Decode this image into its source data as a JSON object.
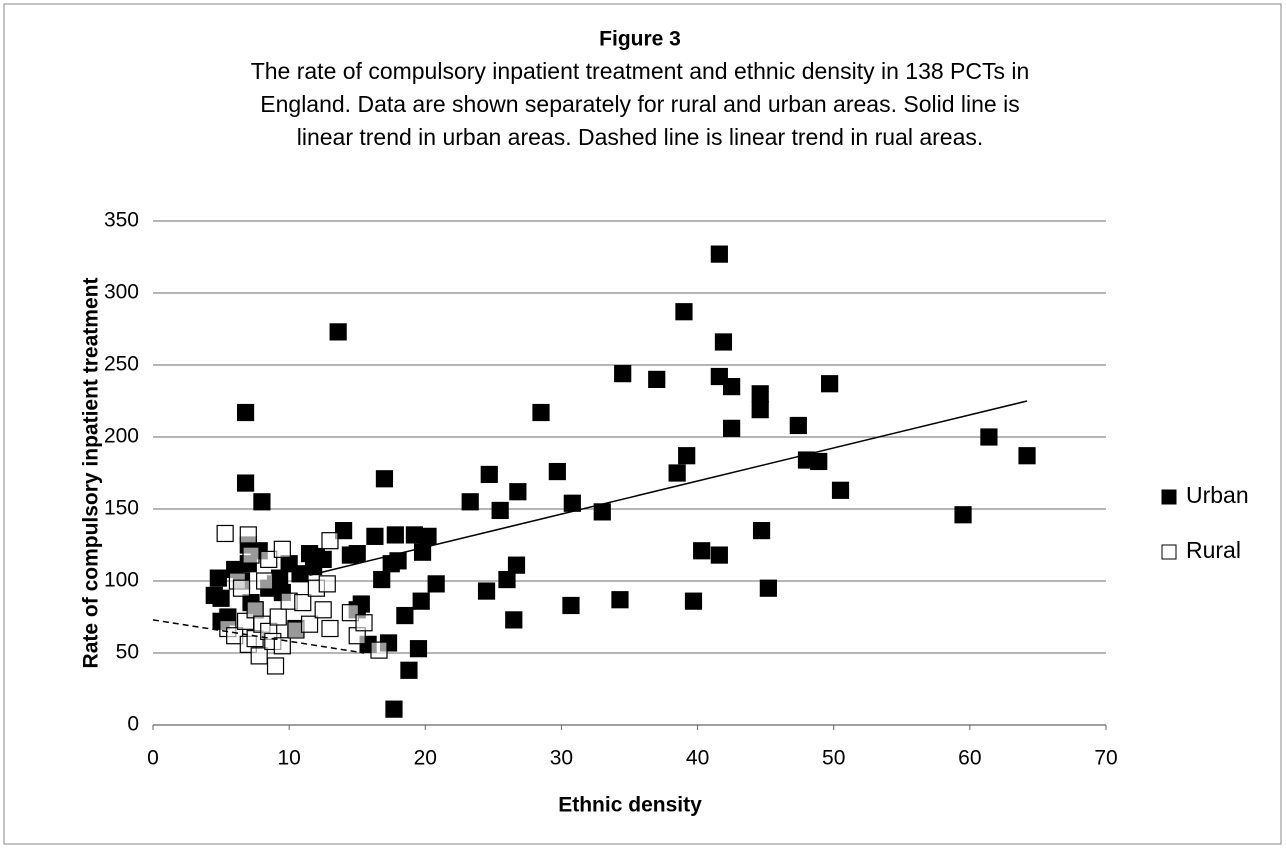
{
  "chart_data": {
    "type": "scatter",
    "title": "Figure 3",
    "subtitle": [
      "The rate of compulsory inpatient treatment and ethnic density in 138 PCTs in",
      "England. Data are shown separately for rural and urban areas. Solid line is",
      "linear trend in urban areas. Dashed line is linear trend in rual areas."
    ],
    "x_label": "Ethnic density",
    "y_label": "Rate of compulsory inpatient treatment",
    "xlim": [
      0,
      70
    ],
    "xticks": [
      0,
      10,
      20,
      30,
      40,
      50,
      60,
      70
    ],
    "ylim": [
      0,
      350
    ],
    "yticks": [
      0,
      50,
      100,
      150,
      200,
      250,
      300,
      350
    ],
    "grid": true,
    "legend": "right",
    "series": [
      {
        "name": "Urban",
        "color": "#000000",
        "filled": true,
        "x": [
          4.5,
          4.8,
          5,
          5,
          5.5,
          6,
          6.5,
          6.8,
          6.8,
          7,
          7,
          7.2,
          7.5,
          7.8,
          8,
          8.5,
          9,
          9.3,
          9.5,
          10,
          10.5,
          10.8,
          11.5,
          11.8,
          12,
          12.5,
          13.6,
          14,
          14.5,
          15,
          15,
          15.3,
          15.8,
          16.3,
          16.8,
          17,
          17.3,
          17.5,
          17.7,
          17.8,
          18,
          18.5,
          18.8,
          19.2,
          19.5,
          19.7,
          19.8,
          20.2,
          20.8,
          23.3,
          24.5,
          24.7,
          25.5,
          26,
          26.5,
          26.7,
          26.8,
          28.5,
          29.7,
          30.7,
          30.8,
          33,
          34.3,
          34.5,
          37,
          38.5,
          39,
          39.2,
          39.7,
          40.3,
          41.6,
          41.6,
          41.6,
          41.9,
          42.5,
          42.5,
          44.6,
          44.6,
          44.7,
          45.2,
          47.4,
          48,
          48.9,
          49.7,
          50.5,
          59.5,
          61.4,
          64.2
        ],
        "values": [
          90,
          102,
          88,
          72,
          75,
          108,
          100,
          217,
          168,
          125,
          112,
          85,
          80,
          121,
          155,
          95,
          98,
          102,
          92,
          112,
          67,
          105,
          119,
          110,
          117,
          115,
          273,
          135,
          118,
          119,
          80,
          84,
          56,
          131,
          101,
          171,
          57,
          112,
          11,
          132,
          114,
          76,
          38,
          132,
          53,
          86,
          120,
          131,
          98,
          155,
          93,
          174,
          149,
          101,
          73,
          111,
          162,
          217,
          176,
          83,
          154,
          148,
          87,
          244,
          240,
          175,
          287,
          187,
          86,
          121,
          327,
          242,
          118,
          266,
          235,
          206,
          230,
          219,
          135,
          95,
          208,
          184,
          183,
          237,
          163,
          146,
          200,
          187
        ]
      },
      {
        "name": "Rural",
        "color": "#000000",
        "filled": false,
        "x": [
          5.3,
          5.5,
          6,
          6.2,
          6.5,
          6.8,
          7,
          7,
          7.2,
          7.5,
          7.5,
          7.8,
          8,
          8.2,
          8.5,
          8.5,
          8.8,
          9,
          9.2,
          9.5,
          9.5,
          10,
          10.5,
          11,
          11.5,
          12,
          12.5,
          12.8,
          13,
          13,
          14.5,
          15,
          15.5,
          16.6
        ],
        "values": [
          133,
          67,
          62,
          100,
          95,
          72,
          132,
          56,
          118,
          80,
          60,
          48,
          70,
          100,
          115,
          65,
          58,
          41,
          75,
          122,
          55,
          86,
          66,
          85,
          70,
          95,
          80,
          98,
          128,
          67,
          78,
          62,
          71,
          52
        ]
      }
    ],
    "trend_lines": [
      {
        "x": [
          11.5,
          64.2
        ],
        "y": [
          104,
          225
        ],
        "dashed": false
      },
      {
        "x": [
          0,
          15.5
        ],
        "y": [
          73,
          50
        ],
        "dashed": true
      }
    ]
  }
}
